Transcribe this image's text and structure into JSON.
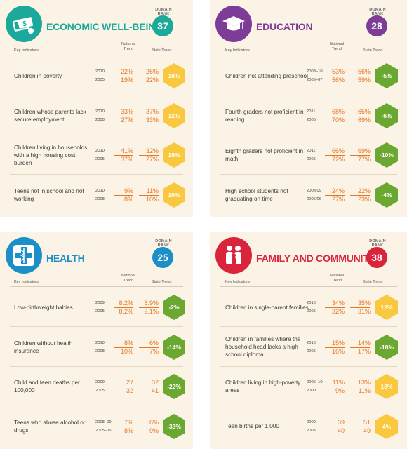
{
  "colors": {
    "panel_bg": "#fbf3e6",
    "economic": "#1aa99a",
    "education": "#7d3c98",
    "health": "#1c8fc9",
    "family": "#d9243c",
    "worse": "#f9c83e",
    "better": "#6aa832",
    "value": "#e87722"
  },
  "headers": {
    "domain_rank": "DOMAIN RANK",
    "key_indicators": "Key Indicators",
    "national_trend": "National Trend",
    "state_trend": "State Trend"
  },
  "panels": [
    {
      "id": "economic",
      "title": "ECONOMIC WELL-BEING",
      "icon": "money-icon",
      "rank": "37",
      "rows": [
        {
          "indicator": "Children in poverty",
          "y1": "2010",
          "y2": "2005",
          "nat1": "22%",
          "nat2": "19%",
          "st1": "26%",
          "st2": "22%",
          "change": "18%",
          "trend": "worse"
        },
        {
          "indicator": "Children whose parents lack secure employment",
          "y1": "2010",
          "y2": "2008",
          "nat1": "33%",
          "nat2": "27%",
          "st1": "37%",
          "st2": "33%",
          "change": "12%",
          "trend": "worse"
        },
        {
          "indicator": "Children living in households with a high housing cost burden",
          "y1": "2010",
          "y2": "2005",
          "nat1": "41%",
          "nat2": "37%",
          "st1": "32%",
          "st2": "27%",
          "change": "19%",
          "trend": "worse"
        },
        {
          "indicator": "Teens not in school and not working",
          "y1": "2010",
          "y2": "2008",
          "nat1": "9%",
          "nat2": "8%",
          "st1": "11%",
          "st2": "10%",
          "change": "10%",
          "trend": "worse"
        }
      ]
    },
    {
      "id": "education",
      "title": "EDUCATION",
      "icon": "graduation-cap-icon",
      "rank": "28",
      "rows": [
        {
          "indicator": "Children not attending preschool",
          "y1": "2008–10",
          "y2": "2005–07",
          "nat1": "53%",
          "nat2": "56%",
          "st1": "56%",
          "st2": "59%",
          "change": "-5%",
          "trend": "better"
        },
        {
          "indicator": "Fourth graders not proficient in reading",
          "y1": "2011",
          "y2": "2005",
          "nat1": "68%",
          "nat2": "70%",
          "st1": "65%",
          "st2": "69%",
          "change": "-6%",
          "trend": "better"
        },
        {
          "indicator": "Eighth graders not proficient in math",
          "y1": "2011",
          "y2": "2005",
          "nat1": "66%",
          "nat2": "72%",
          "st1": "69%",
          "st2": "77%",
          "change": "-10%",
          "trend": "better"
        },
        {
          "indicator": "High school students not graduating on time",
          "y1": "2008/09",
          "y2": "2005/06",
          "nat1": "24%",
          "nat2": "27%",
          "st1": "22%",
          "st2": "23%",
          "change": "-4%",
          "trend": "better"
        }
      ]
    },
    {
      "id": "health",
      "title": "HEALTH",
      "icon": "caduceus-icon",
      "rank": "25",
      "rows": [
        {
          "indicator": "Low-birthweight babies",
          "y1": "2009",
          "y2": "2005",
          "nat1": "8.2%",
          "nat2": "8.2%",
          "st1": "8.9%",
          "st2": "9.1%",
          "change": "-2%",
          "trend": "better"
        },
        {
          "indicator": "Children without health insurance",
          "y1": "2010",
          "y2": "2008",
          "nat1": "8%",
          "nat2": "10%",
          "st1": "6%",
          "st2": "7%",
          "change": "-14%",
          "trend": "better"
        },
        {
          "indicator": "Child and teen deaths per 100,000",
          "y1": "2009",
          "y2": "2005",
          "nat1": "27",
          "nat2": "32",
          "st1": "32",
          "st2": "41",
          "change": "-22%",
          "trend": "better"
        },
        {
          "indicator": "Teens who abuse alcohol or drugs",
          "y1": "2008–09",
          "y2": "2005–06",
          "nat1": "7%",
          "nat2": "8%",
          "st1": "6%",
          "st2": "9%",
          "change": "-33%",
          "trend": "better"
        }
      ]
    },
    {
      "id": "family",
      "title": "FAMILY AND COMMUNITY",
      "icon": "family-icon",
      "rank": "38",
      "rows": [
        {
          "indicator": "Children in single-parent families",
          "y1": "2010",
          "y2": "2005",
          "nat1": "34%",
          "nat2": "32%",
          "st1": "35%",
          "st2": "31%",
          "change": "13%",
          "trend": "worse"
        },
        {
          "indicator": "Children in families where the household head lacks a high school diploma",
          "y1": "2010",
          "y2": "2005",
          "nat1": "15%",
          "nat2": "16%",
          "st1": "14%",
          "st2": "17%",
          "change": "-18%",
          "trend": "better"
        },
        {
          "indicator": "Children living in high-poverty areas",
          "y1": "2006–10",
          "y2": "2000",
          "nat1": "11%",
          "nat2": "9%",
          "st1": "13%",
          "st2": "11%",
          "change": "18%",
          "trend": "worse"
        },
        {
          "indicator": "Teen births per 1,000",
          "y1": "2009",
          "y2": "2005",
          "nat1": "39",
          "nat2": "40",
          "st1": "51",
          "st2": "49",
          "change": "4%",
          "trend": "worse"
        }
      ]
    }
  ]
}
